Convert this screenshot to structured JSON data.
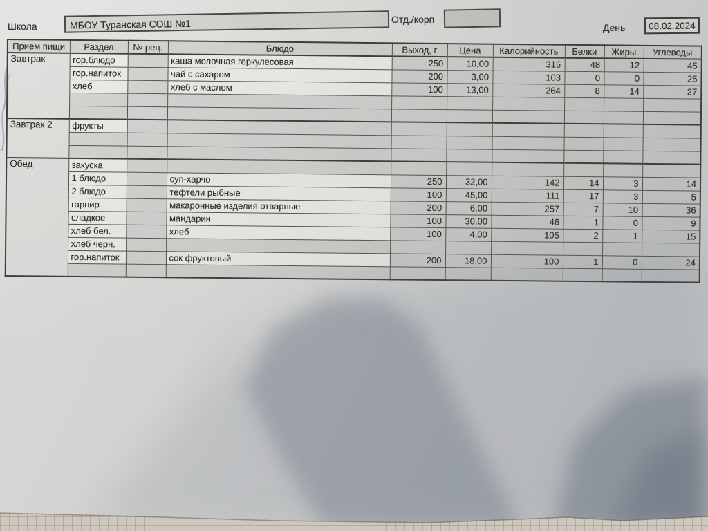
{
  "header": {
    "school_label": "Школа",
    "school_name": "МБОУ Туранская СОШ №1",
    "dept_label": "Отд./корп",
    "dept_value": "",
    "day_label": "День",
    "day_value": "08.02.2024"
  },
  "table": {
    "columns": [
      "Прием пищи",
      "Раздел",
      "№ рец.",
      "Блюдо",
      "Выход, г",
      "Цена",
      "Калорийность",
      "Белки",
      "Жиры",
      "Углеводы"
    ],
    "sections": [
      {
        "meal": "Завтрак",
        "rows": [
          {
            "razdel": "гор.блюдо",
            "dish": "каша молочная геркулесовая",
            "out": "250",
            "price": "10,00",
            "kcal": "315",
            "protein": "48",
            "fat": "12",
            "carbs": "45"
          },
          {
            "razdel": "гор.напиток",
            "dish": "чай с сахаром",
            "out": "200",
            "price": "3,00",
            "kcal": "103",
            "protein": "0",
            "fat": "0",
            "carbs": "25"
          },
          {
            "razdel": "хлеб",
            "dish": "хлеб с маслом",
            "out": "100",
            "price": "13,00",
            "kcal": "264",
            "protein": "8",
            "fat": "14",
            "carbs": "27"
          },
          {},
          {}
        ]
      },
      {
        "meal": "Завтрак 2",
        "rows": [
          {
            "razdel": "фрукты"
          },
          {},
          {}
        ]
      },
      {
        "meal": "Обед",
        "rows": [
          {
            "razdel": "закуска"
          },
          {
            "razdel": "1 блюдо",
            "dish": "суп-харчо",
            "out": "250",
            "price": "32,00",
            "kcal": "142",
            "protein": "14",
            "fat": "3",
            "carbs": "14"
          },
          {
            "razdel": "2 блюдо",
            "dish": "тефтели рыбные",
            "out": "100",
            "price": "45,00",
            "kcal": "111",
            "protein": "17",
            "fat": "3",
            "carbs": "5"
          },
          {
            "razdel": "гарнир",
            "dish": "макаронные изделия отварные",
            "out": "200",
            "price": "6,00",
            "kcal": "257",
            "protein": "7",
            "fat": "10",
            "carbs": "36"
          },
          {
            "razdel": "сладкое",
            "dish": "мандарин",
            "out": "100",
            "price": "30,00",
            "kcal": "46",
            "protein": "1",
            "fat": "0",
            "carbs": "9"
          },
          {
            "razdel": "хлеб бел.",
            "dish": "хлеб",
            "out": "100",
            "price": "4,00",
            "kcal": "105",
            "protein": "2",
            "fat": "1",
            "carbs": "15"
          },
          {
            "razdel": "хлеб черн."
          },
          {
            "razdel": "гор.напиток",
            "dish": "сок фруктовый",
            "out": "200",
            "price": "18,00",
            "kcal": "100",
            "protein": "1",
            "fat": "0",
            "carbs": "24"
          },
          {}
        ]
      }
    ]
  }
}
